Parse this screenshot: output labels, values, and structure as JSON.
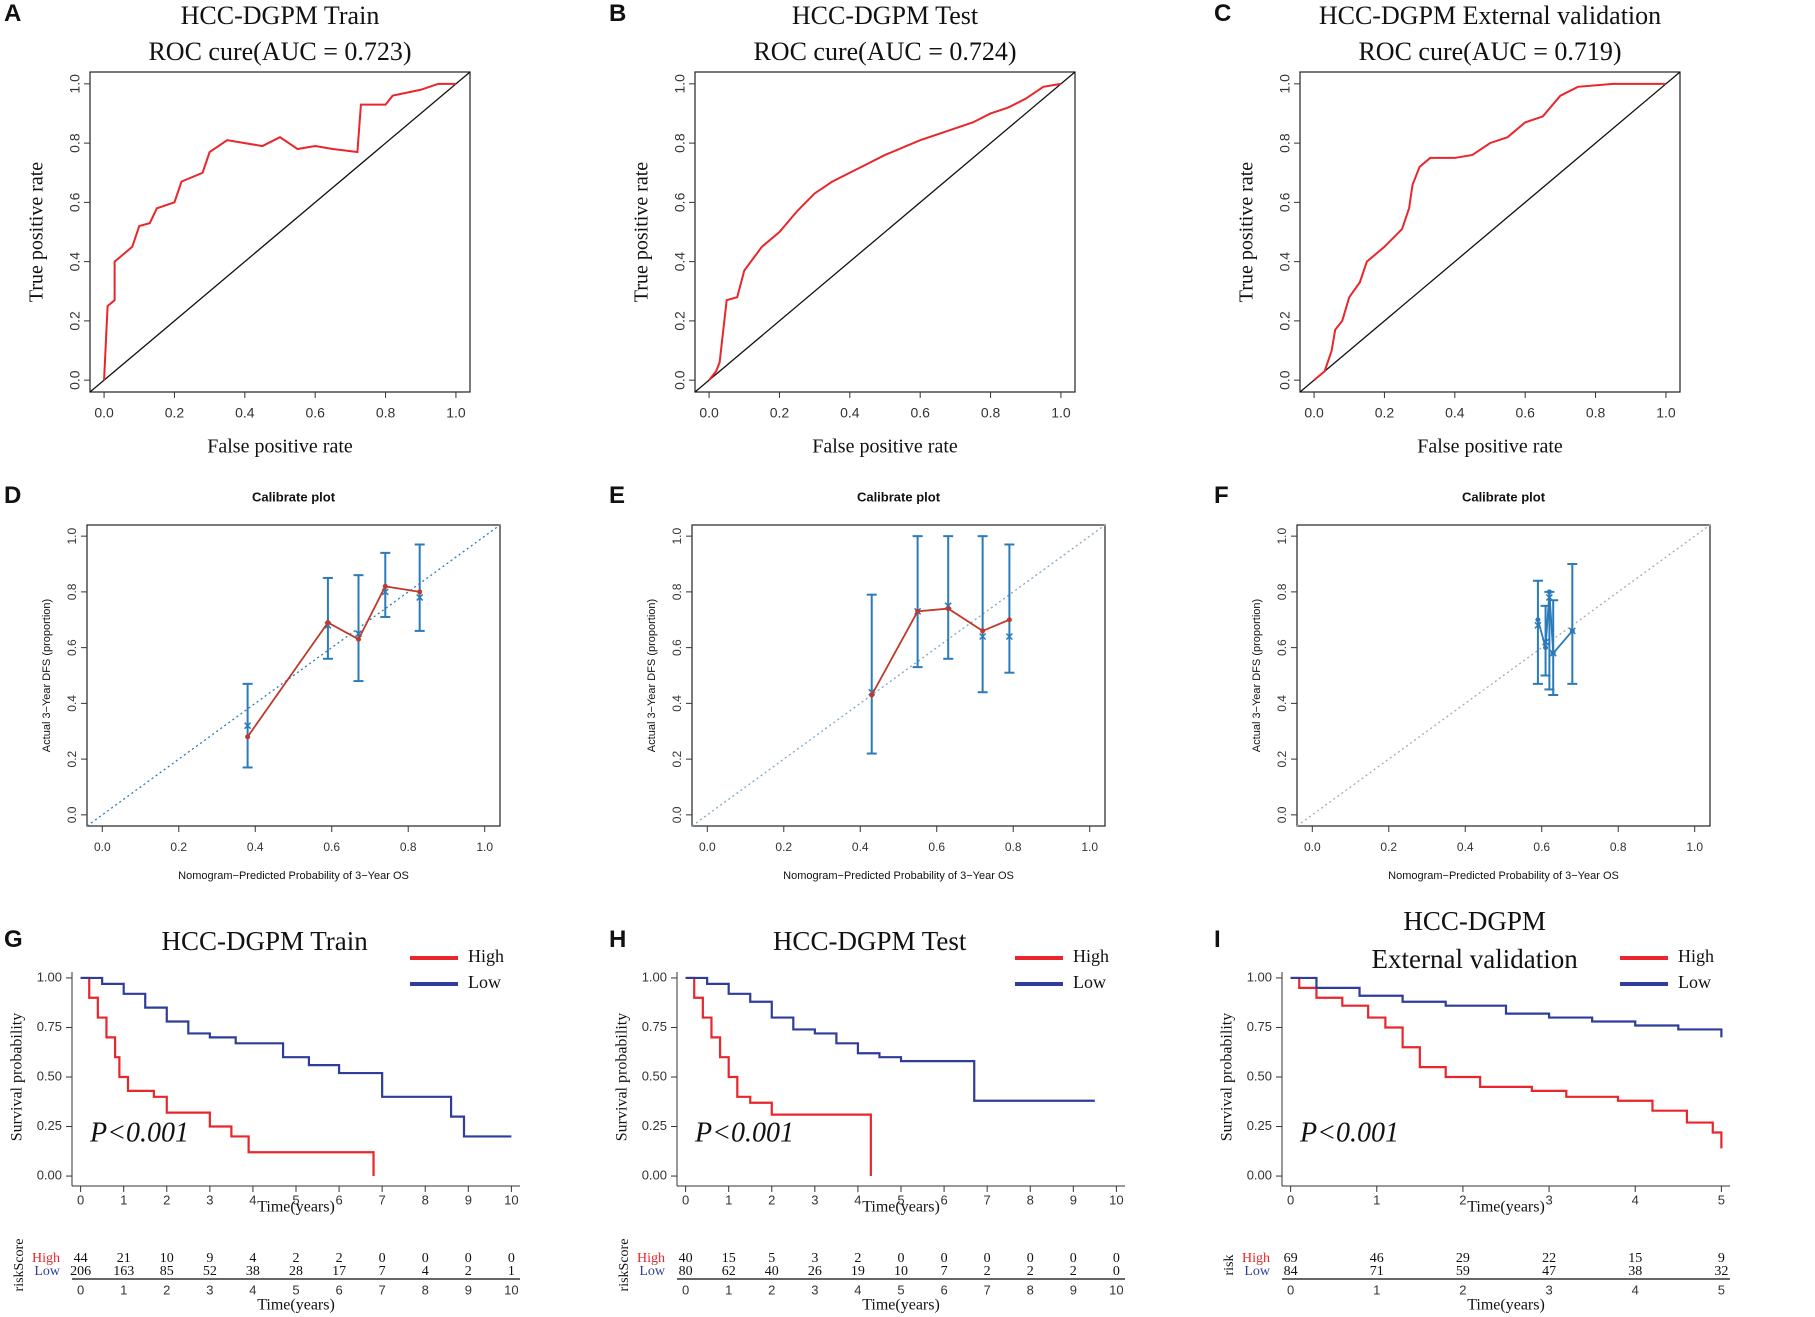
{
  "chart_data": [
    {
      "type": "line",
      "label": "A",
      "title": "HCC-DGPM Train",
      "subtitle": "ROC cure(AUC = 0.723)",
      "xlabel": "False positive rate",
      "ylabel": "True positive rate",
      "color": "#e8262b",
      "x": [
        0,
        0.01,
        0.03,
        0.03,
        0.05,
        0.08,
        0.1,
        0.13,
        0.15,
        0.2,
        0.22,
        0.28,
        0.3,
        0.35,
        0.4,
        0.45,
        0.5,
        0.55,
        0.6,
        0.65,
        0.72,
        0.73,
        0.8,
        0.82,
        0.9,
        0.95,
        1
      ],
      "values": [
        0,
        0.25,
        0.27,
        0.4,
        0.42,
        0.45,
        0.52,
        0.53,
        0.58,
        0.6,
        0.67,
        0.7,
        0.77,
        0.81,
        0.8,
        0.79,
        0.82,
        0.78,
        0.79,
        0.78,
        0.77,
        0.93,
        0.93,
        0.96,
        0.98,
        1,
        1
      ],
      "xlim": [
        -0.04,
        1.04
      ],
      "ylim": [
        -0.04,
        1.04
      ],
      "xticks": [
        {
          "value": 0,
          "label": "0.0"
        },
        0.2,
        0.4,
        0.6,
        0.8,
        {
          "value": 1,
          "label": "1.0"
        }
      ],
      "yticks": [
        {
          "value": 0,
          "label": "0.0"
        },
        0.2,
        0.4,
        0.6,
        0.8,
        {
          "value": 1,
          "label": "1.0"
        }
      ],
      "grid": false
    },
    {
      "type": "line",
      "label": "B",
      "title": "HCC-DGPM Test",
      "subtitle": "ROC cure(AUC = 0.724)",
      "xlabel": "False positive rate",
      "ylabel": "True positive rate",
      "color": "#e8262b",
      "x": [
        0,
        0.02,
        0.03,
        0.05,
        0.08,
        0.1,
        0.15,
        0.2,
        0.25,
        0.3,
        0.35,
        0.4,
        0.45,
        0.5,
        0.6,
        0.7,
        0.75,
        0.8,
        0.85,
        0.9,
        0.95,
        1
      ],
      "values": [
        0,
        0.03,
        0.06,
        0.27,
        0.28,
        0.37,
        0.45,
        0.5,
        0.57,
        0.63,
        0.67,
        0.7,
        0.73,
        0.76,
        0.81,
        0.85,
        0.87,
        0.9,
        0.92,
        0.95,
        0.99,
        1
      ],
      "xlim": [
        -0.04,
        1.04
      ],
      "ylim": [
        -0.04,
        1.04
      ],
      "xticks": [
        {
          "value": 0,
          "label": "0.0"
        },
        0.2,
        0.4,
        0.6,
        0.8,
        {
          "value": 1,
          "label": "1.0"
        }
      ],
      "yticks": [
        {
          "value": 0,
          "label": "0.0"
        },
        0.2,
        0.4,
        0.6,
        0.8,
        {
          "value": 1,
          "label": "1.0"
        }
      ],
      "grid": false
    },
    {
      "type": "line",
      "label": "C",
      "title": "HCC-DGPM External validation",
      "subtitle": "ROC cure(AUC = 0.719)",
      "xlabel": "False positive rate",
      "ylabel": "True positive rate",
      "color": "#e8262b",
      "x": [
        0,
        0.03,
        0.05,
        0.06,
        0.08,
        0.1,
        0.13,
        0.15,
        0.2,
        0.25,
        0.27,
        0.28,
        0.3,
        0.33,
        0.4,
        0.45,
        0.5,
        0.55,
        0.6,
        0.65,
        0.7,
        0.75,
        0.85,
        1
      ],
      "values": [
        0,
        0.03,
        0.1,
        0.17,
        0.2,
        0.28,
        0.33,
        0.4,
        0.45,
        0.51,
        0.58,
        0.66,
        0.72,
        0.75,
        0.75,
        0.76,
        0.8,
        0.82,
        0.87,
        0.89,
        0.96,
        0.99,
        1,
        1
      ],
      "xlim": [
        -0.04,
        1.04
      ],
      "ylim": [
        -0.04,
        1.04
      ],
      "xticks": [
        {
          "value": 0,
          "label": "0.0"
        },
        0.2,
        0.4,
        0.6,
        0.8,
        {
          "value": 1,
          "label": "1.0"
        }
      ],
      "yticks": [
        {
          "value": 0,
          "label": "0.0"
        },
        0.2,
        0.4,
        0.6,
        0.8,
        {
          "value": 1,
          "label": "1.0"
        }
      ],
      "grid": false
    },
    {
      "type": "errorbar",
      "label": "D",
      "title": "Calibrate plot",
      "xlabel": "Nomogram−Predicted Probability of 3−Year OS",
      "ylabel": "Actual 3−Year DFS (proportion)",
      "color": "#c0392b",
      "bar_color": "#2b7bb9",
      "ideal_color": "#2b7bb9",
      "x": [
        0.38,
        0.59,
        0.67,
        0.74,
        0.83
      ],
      "values": [
        0.28,
        0.69,
        0.63,
        0.82,
        0.8
      ],
      "corrected": [
        0.32,
        0.68,
        0.65,
        0.8,
        0.78
      ],
      "ci_low": [
        0.17,
        0.56,
        0.48,
        0.71,
        0.66
      ],
      "ci_high": [
        0.47,
        0.85,
        0.86,
        0.94,
        0.97
      ],
      "xlim": [
        -0.04,
        1.04
      ],
      "ylim": [
        -0.04,
        1.04
      ],
      "xticks": [
        {
          "value": 0,
          "label": "0.0"
        },
        0.2,
        0.4,
        0.6,
        0.8,
        {
          "value": 1,
          "label": "1.0"
        }
      ],
      "yticks": [
        {
          "value": 0,
          "label": "0.0"
        },
        0.2,
        0.4,
        0.6,
        0.8,
        {
          "value": 1,
          "label": "1.0"
        }
      ],
      "grid": false
    },
    {
      "type": "errorbar",
      "label": "E",
      "title": "Calibrate plot",
      "xlabel": "Nomogram−Predicted Probability of 3−Year OS",
      "ylabel": "Actual 3−Year DFS (proportion)",
      "color": "#c0392b",
      "bar_color": "#2b7bb9",
      "ideal_color": "#7fa6c8",
      "x": [
        0.43,
        0.55,
        0.63,
        0.72,
        0.79
      ],
      "values": [
        0.43,
        0.73,
        0.74,
        0.66,
        0.7
      ],
      "corrected": [
        0.44,
        0.73,
        0.75,
        0.64,
        0.64
      ],
      "ci_low": [
        0.22,
        0.53,
        0.56,
        0.44,
        0.51
      ],
      "ci_high": [
        0.79,
        1,
        1,
        1,
        0.97
      ],
      "xlim": [
        -0.04,
        1.04
      ],
      "ylim": [
        -0.04,
        1.04
      ],
      "xticks": [
        {
          "value": 0,
          "label": "0.0"
        },
        0.2,
        0.4,
        0.6,
        0.8,
        {
          "value": 1,
          "label": "1.0"
        }
      ],
      "yticks": [
        {
          "value": 0,
          "label": "0.0"
        },
        0.2,
        0.4,
        0.6,
        0.8,
        {
          "value": 1,
          "label": "1.0"
        }
      ],
      "grid": false
    },
    {
      "type": "errorbar",
      "label": "F",
      "title": "Calibrate plot",
      "xlabel": "Nomogram−Predicted Probability of 3−Year OS",
      "ylabel": "Actual 3−Year DFS (proportion)",
      "color": "#2b7bb9",
      "bar_color": "#2b7bb9",
      "ideal_color": "#aaaaaa",
      "x": [
        0.59,
        0.61,
        0.62,
        0.63,
        0.68
      ],
      "values": [
        0.7,
        0.6,
        0.8,
        0.58,
        0.66
      ],
      "corrected": [
        0.68,
        0.62,
        0.78,
        0.58,
        0.66
      ],
      "ci_low": [
        0.47,
        0.5,
        0.45,
        0.43,
        0.47
      ],
      "ci_high": [
        0.84,
        0.75,
        0.8,
        0.77,
        0.9
      ],
      "xlim": [
        -0.04,
        1.04
      ],
      "ylim": [
        -0.04,
        1.04
      ],
      "xticks": [
        {
          "value": 0,
          "label": "0.0"
        },
        0.2,
        0.4,
        0.6,
        0.8,
        {
          "value": 1,
          "label": "1.0"
        }
      ],
      "yticks": [
        {
          "value": 0,
          "label": "0.0"
        },
        0.2,
        0.4,
        0.6,
        0.8,
        {
          "value": 1,
          "label": "1.0"
        }
      ],
      "grid": false
    },
    {
      "type": "step",
      "label": "G",
      "title": "HCC-DGPM Train",
      "xlabel": "Time(years)",
      "ylabel": "Survival probability",
      "annotation": "P<0.001",
      "legend": "top right",
      "series": [
        {
          "name": "High",
          "color": "#e8262b",
          "x": [
            0,
            0.2,
            0.4,
            0.6,
            0.8,
            0.9,
            1.1,
            1.7,
            2,
            3,
            3.5,
            3.9,
            6.8,
            6.8
          ],
          "values": [
            1,
            0.9,
            0.8,
            0.7,
            0.6,
            0.5,
            0.43,
            0.4,
            0.32,
            0.25,
            0.2,
            0.12,
            0.12,
            0
          ]
        },
        {
          "name": "Low",
          "color": "#2e3d9c",
          "x": [
            0,
            0.5,
            1,
            1.5,
            2,
            2.5,
            3,
            3.6,
            4.7,
            5.3,
            6,
            7,
            8.6,
            8.9,
            10
          ],
          "values": [
            1,
            0.97,
            0.92,
            0.85,
            0.78,
            0.72,
            0.7,
            0.67,
            0.6,
            0.56,
            0.52,
            0.4,
            0.3,
            0.2,
            0.2
          ]
        }
      ],
      "risk_table": {
        "label": "riskScore",
        "rows": [
          {
            "name": "High",
            "values": [
              44,
              21,
              10,
              9,
              4,
              2,
              2,
              0,
              0,
              0,
              0
            ]
          },
          {
            "name": "Low",
            "values": [
              206,
              163,
              85,
              52,
              38,
              28,
              17,
              7,
              4,
              2,
              1
            ]
          }
        ]
      },
      "xlim": [
        -0.2,
        10.2
      ],
      "ylim": [
        -0.03,
        1.03
      ],
      "xticks": [
        0,
        1,
        2,
        3,
        4,
        5,
        6,
        7,
        8,
        9,
        10
      ],
      "yticks": [
        {
          "value": 0,
          "label": "0.00"
        },
        0.25,
        {
          "value": 0.5,
          "label": "0.50"
        },
        0.75,
        {
          "value": 1,
          "label": "1.00"
        }
      ],
      "grid": false
    },
    {
      "type": "step",
      "label": "H",
      "title": "HCC-DGPM Test",
      "xlabel": "Time(years)",
      "ylabel": "Survival probability",
      "annotation": "P<0.001",
      "legend": "top right",
      "series": [
        {
          "name": "High",
          "color": "#e8262b",
          "x": [
            0,
            0.2,
            0.4,
            0.6,
            0.8,
            1,
            1.2,
            1.5,
            2,
            4.3,
            4.3
          ],
          "values": [
            1,
            0.9,
            0.8,
            0.7,
            0.6,
            0.5,
            0.4,
            0.37,
            0.31,
            0.31,
            0
          ]
        },
        {
          "name": "Low",
          "color": "#2e3d9c",
          "x": [
            0,
            0.5,
            1,
            1.5,
            2,
            2.5,
            3,
            3.5,
            4,
            4.5,
            5,
            6.7,
            6.7,
            9.5
          ],
          "values": [
            1,
            0.97,
            0.92,
            0.88,
            0.8,
            0.74,
            0.72,
            0.67,
            0.62,
            0.6,
            0.58,
            0.58,
            0.38,
            0.38
          ]
        }
      ],
      "risk_table": {
        "label": "riskScore",
        "rows": [
          {
            "name": "High",
            "values": [
              40,
              15,
              5,
              3,
              2,
              0,
              0,
              0,
              0,
              0,
              0
            ]
          },
          {
            "name": "Low",
            "values": [
              80,
              62,
              40,
              26,
              19,
              10,
              7,
              2,
              2,
              2,
              0
            ]
          }
        ]
      },
      "xlim": [
        -0.2,
        10.2
      ],
      "ylim": [
        -0.03,
        1.03
      ],
      "xticks": [
        0,
        1,
        2,
        3,
        4,
        5,
        6,
        7,
        8,
        9,
        10
      ],
      "yticks": [
        {
          "value": 0,
          "label": "0.00"
        },
        0.25,
        {
          "value": 0.5,
          "label": "0.50"
        },
        0.75,
        {
          "value": 1,
          "label": "1.00"
        }
      ],
      "grid": false
    },
    {
      "type": "step",
      "label": "I",
      "title": "HCC-DGPM",
      "subtitle": "External validation",
      "xlabel": "Time(years)",
      "ylabel": "Survival probability",
      "annotation": "P<0.001",
      "legend": "top right",
      "series": [
        {
          "name": "High",
          "color": "#e8262b",
          "x": [
            0,
            0.1,
            0.3,
            0.6,
            0.9,
            1.1,
            1.3,
            1.5,
            1.8,
            2.2,
            2.8,
            3.2,
            3.8,
            4.2,
            4.6,
            4.9,
            5
          ],
          "values": [
            1,
            0.95,
            0.9,
            0.86,
            0.8,
            0.75,
            0.65,
            0.55,
            0.5,
            0.45,
            0.43,
            0.4,
            0.38,
            0.33,
            0.27,
            0.22,
            0.14
          ]
        },
        {
          "name": "Low",
          "color": "#2e3d9c",
          "x": [
            0,
            0.3,
            0.8,
            1.3,
            1.8,
            2.5,
            3,
            3.5,
            4,
            4.5,
            5
          ],
          "values": [
            1,
            0.95,
            0.91,
            0.88,
            0.86,
            0.82,
            0.8,
            0.78,
            0.76,
            0.74,
            0.7
          ]
        }
      ],
      "risk_table": {
        "label": "risk",
        "rows": [
          {
            "name": "High",
            "values": [
              69,
              46,
              29,
              22,
              15,
              9
            ]
          },
          {
            "name": "Low",
            "values": [
              84,
              71,
              59,
              47,
              38,
              32
            ]
          }
        ]
      },
      "xlim": [
        -0.1,
        5.1
      ],
      "ylim": [
        -0.03,
        1.03
      ],
      "xticks": [
        0,
        1,
        2,
        3,
        4,
        5
      ],
      "yticks": [
        {
          "value": 0,
          "label": "0.00"
        },
        0.25,
        {
          "value": 0.5,
          "label": "0.50"
        },
        0.75,
        {
          "value": 1,
          "label": "1.00"
        }
      ],
      "grid": false
    }
  ]
}
